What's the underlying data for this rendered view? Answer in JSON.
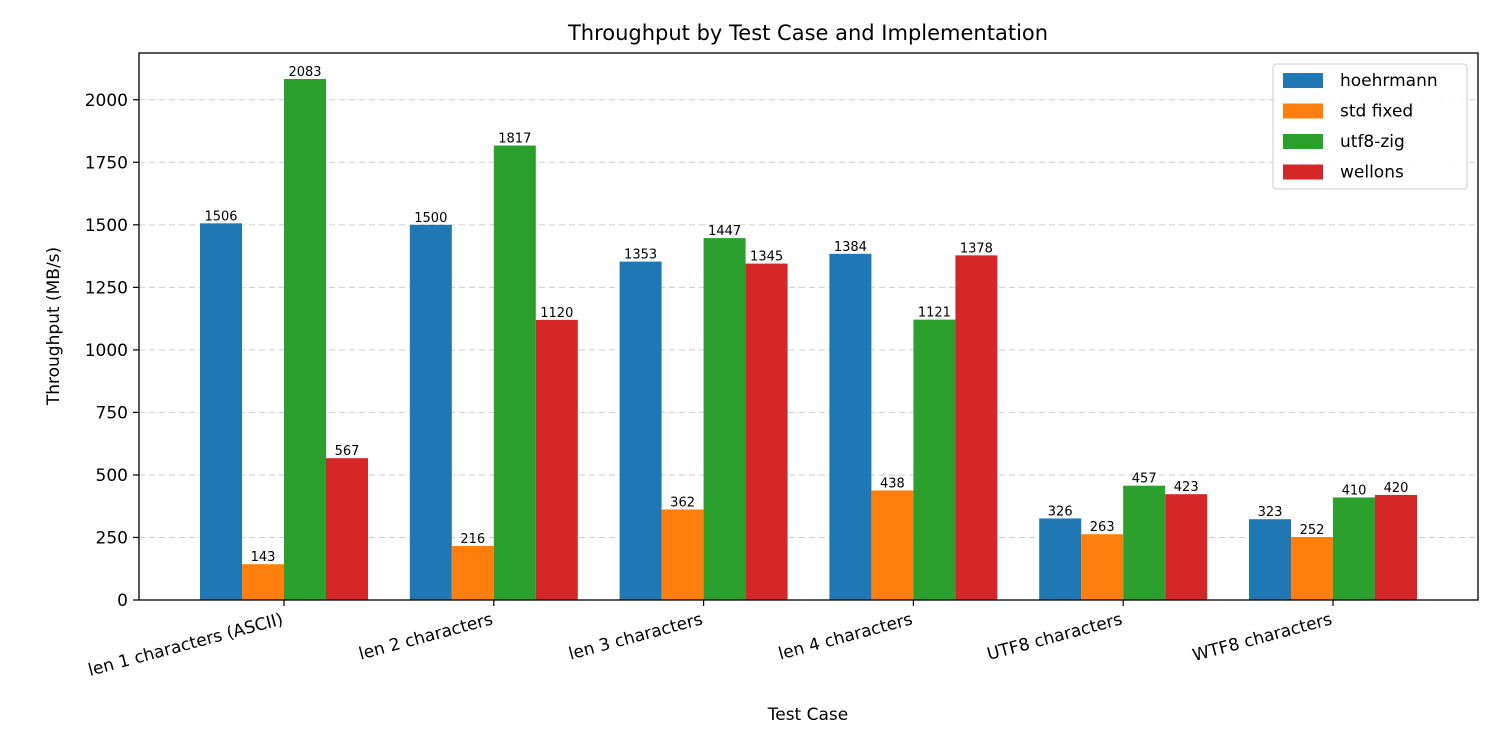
{
  "chart_data": {
    "type": "bar",
    "title": "Throughput by Test Case and Implementation",
    "xlabel": "Test Case",
    "ylabel": "Throughput (MB/s)",
    "ylim": [
      0,
      2187
    ],
    "yticks": [
      0,
      250,
      500,
      750,
      1000,
      1250,
      1500,
      1750,
      2000
    ],
    "grid": "horizontal dashed",
    "legend_position": "top-right",
    "categories": [
      "len 1 characters (ASCII)",
      "len 2 characters",
      "len 3 characters",
      "len 4 characters",
      "UTF8 characters",
      "WTF8 characters"
    ],
    "series": [
      {
        "name": "hoehrmann",
        "color": "#1f77b4",
        "values": [
          1506,
          1500,
          1353,
          1384,
          326,
          323
        ]
      },
      {
        "name": "std fixed",
        "color": "#ff7f0e",
        "values": [
          143,
          216,
          362,
          438,
          263,
          252
        ]
      },
      {
        "name": "utf8-zig",
        "color": "#2ca02c",
        "values": [
          2083,
          1817,
          1447,
          1121,
          457,
          410
        ]
      },
      {
        "name": "wellons",
        "color": "#d62728",
        "values": [
          567,
          1120,
          1345,
          1378,
          423,
          420
        ]
      }
    ]
  }
}
